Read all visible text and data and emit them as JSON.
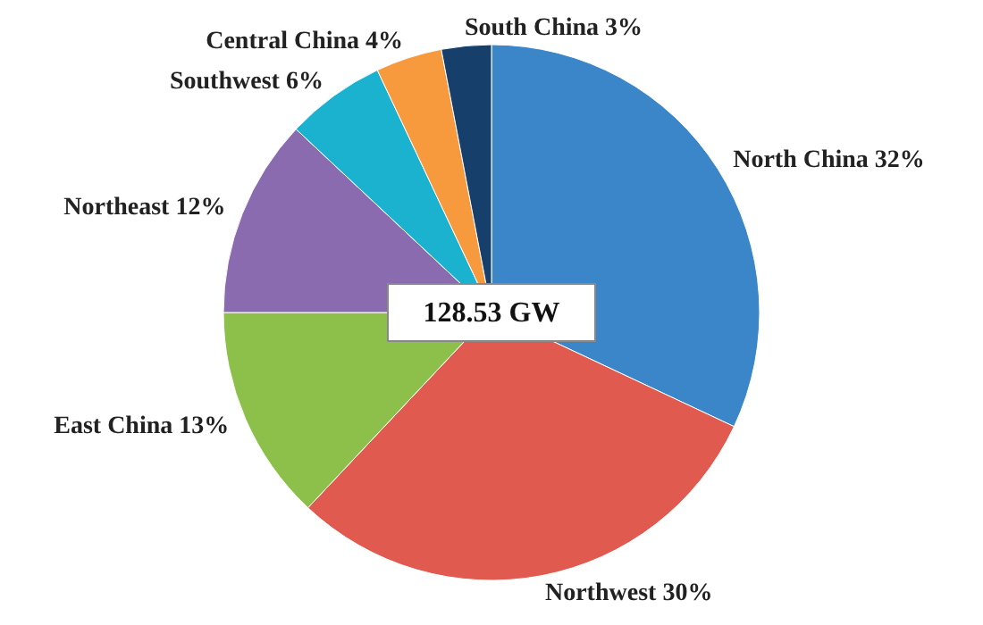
{
  "chart_data": {
    "type": "pie",
    "categories": [
      "North China",
      "Northwest",
      "East China",
      "Northeast",
      "Southwest",
      "Central China",
      "South China"
    ],
    "values": [
      32,
      30,
      13,
      12,
      6,
      4,
      3
    ],
    "value_labels": [
      "32%",
      "30%",
      "13%",
      "12%",
      "6%",
      "4%",
      "3%"
    ],
    "colors": [
      "#3a86c8",
      "#e05a4f",
      "#8dc04b",
      "#8a6bb0",
      "#1ab2cf",
      "#f79a3e",
      "#173f6b"
    ],
    "annotations": [
      "128.53 GW"
    ]
  }
}
